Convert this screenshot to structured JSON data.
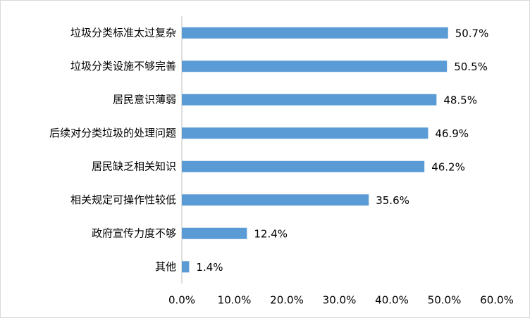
{
  "chart_data": {
    "type": "bar",
    "orientation": "horizontal",
    "categories": [
      "垃圾分类标准太过复杂",
      "垃圾分类设施不够完善",
      "居民意识薄弱",
      "后续对分类垃圾的处理问题",
      "居民缺乏相关知识",
      "相关规定可操作性较低",
      "政府宣传力度不够",
      "其他"
    ],
    "values": [
      50.7,
      50.5,
      48.5,
      46.9,
      46.2,
      35.6,
      12.4,
      1.4
    ],
    "value_labels": [
      "50.7%",
      "50.5%",
      "48.5%",
      "46.9%",
      "46.2%",
      "35.6%",
      "12.4%",
      "1.4%"
    ],
    "color": "#5b9bd5",
    "xlim": [
      0,
      60
    ],
    "xticks": [
      {
        "value": 0,
        "label": "0.0%"
      },
      {
        "value": 10,
        "label": "10.0%"
      },
      {
        "value": 20,
        "label": "20.0%"
      },
      {
        "value": 30,
        "label": "30.0%"
      },
      {
        "value": 40,
        "label": "40.0%"
      },
      {
        "value": 50,
        "label": "50.0%"
      },
      {
        "value": 60,
        "label": "60.0%"
      }
    ],
    "grid": false
  }
}
